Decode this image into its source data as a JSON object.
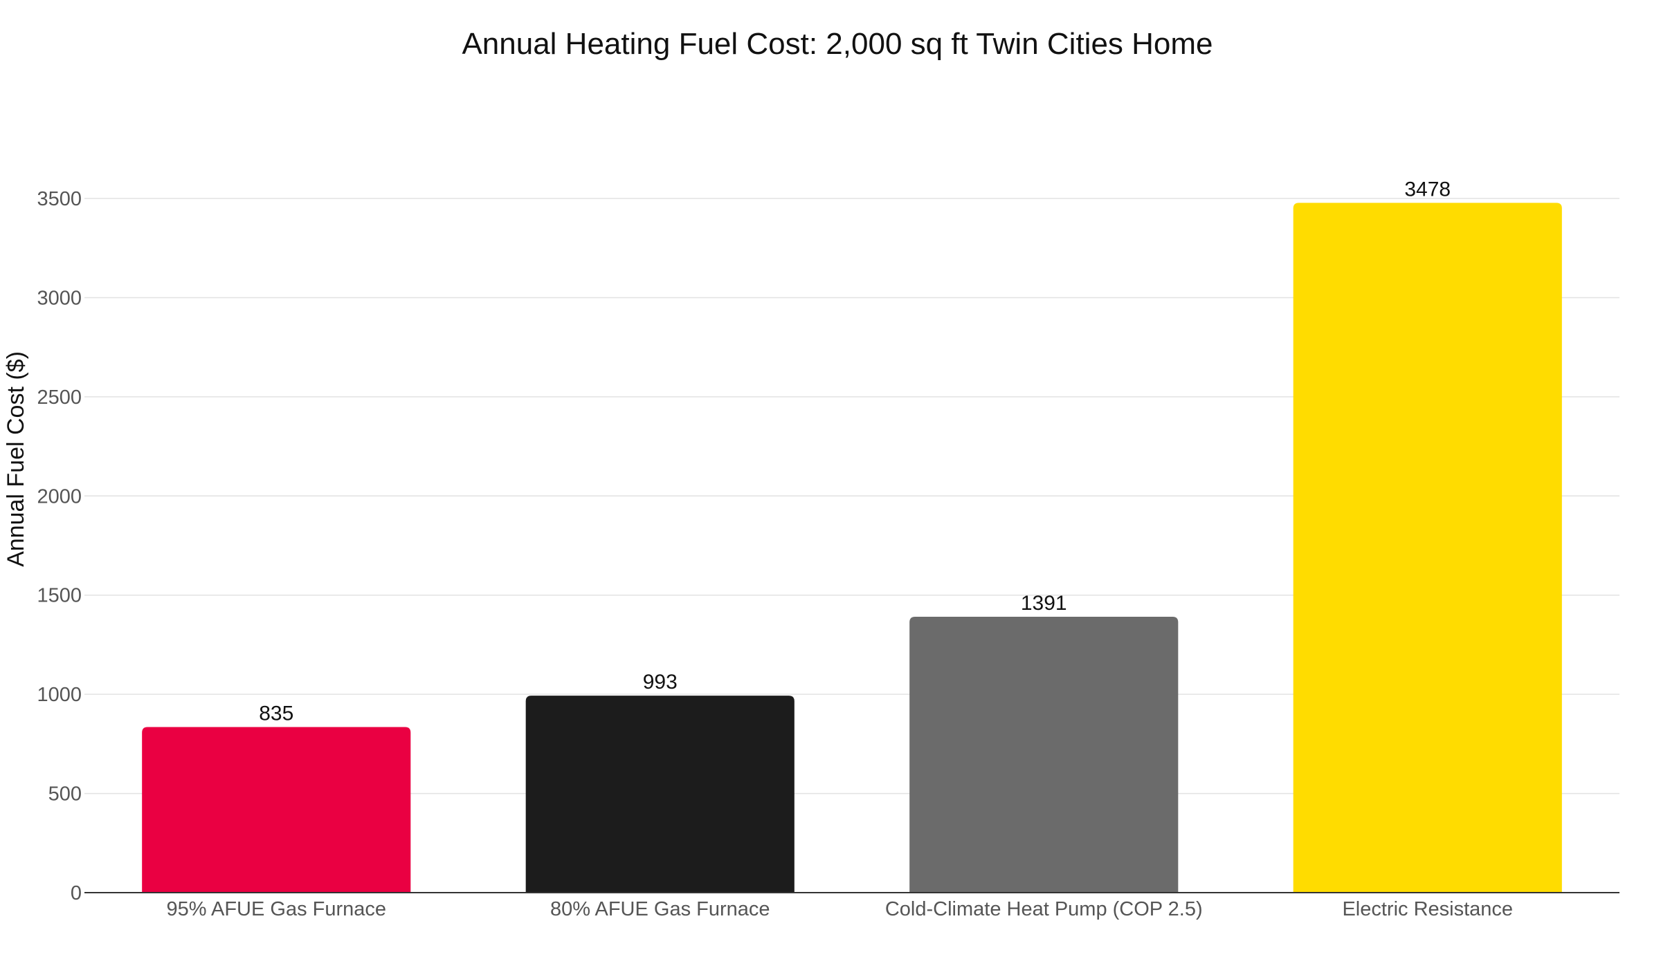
{
  "chart_data": {
    "type": "bar",
    "title": "Annual Heating Fuel Cost: 2,000 sq ft Twin Cities Home",
    "xlabel": "",
    "ylabel": "Annual Fuel Cost ($)",
    "categories": [
      "95% AFUE Gas Furnace",
      "80% AFUE Gas Furnace",
      "Cold-Climate Heat Pump (COP 2.5)",
      "Electric Resistance"
    ],
    "values": [
      835,
      993,
      1391,
      3478
    ],
    "data_labels": [
      "835",
      "993",
      "1391",
      "3478"
    ],
    "colors": [
      "#ea0042",
      "#1c1c1c",
      "#6b6b6b",
      "#ffdc00"
    ],
    "ylim": [
      0,
      3650
    ],
    "yticks": [
      0,
      500,
      1000,
      1500,
      2000,
      2500,
      3000,
      3500
    ],
    "ytick_labels": [
      "0",
      "500",
      "1000",
      "1500",
      "2000",
      "2500",
      "3000",
      "3500"
    ],
    "grid": true,
    "legend": "none"
  }
}
